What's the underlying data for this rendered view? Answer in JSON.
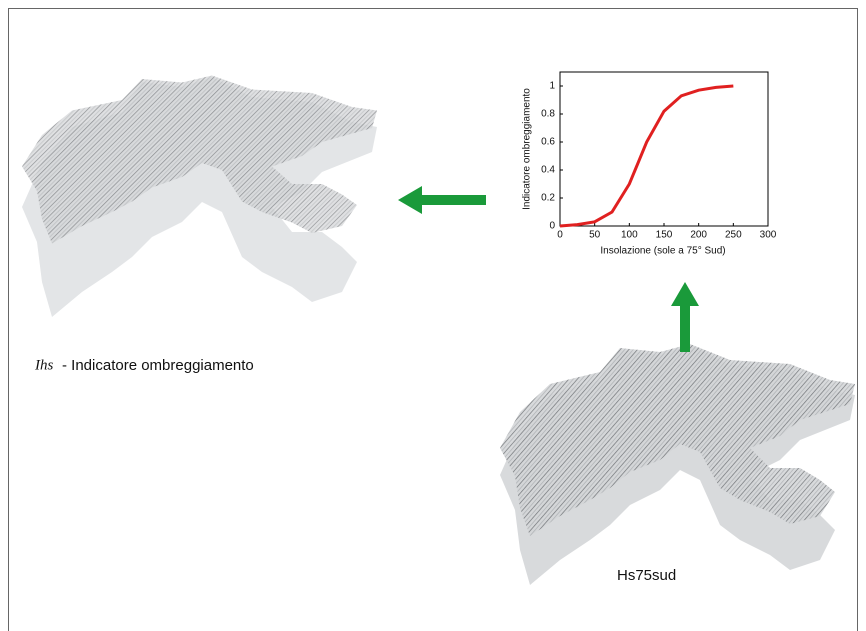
{
  "chart_data": {
    "type": "line",
    "xlabel": "Insolazione (sole a 75° Sud)",
    "ylabel": "Indicatore ombreggiamento",
    "x": [
      0,
      25,
      50,
      75,
      100,
      125,
      150,
      175,
      200,
      225,
      250
    ],
    "series": [
      {
        "color": "#e02020",
        "values": [
          0,
          0.01,
          0.03,
          0.1,
          0.3,
          0.6,
          0.82,
          0.93,
          0.97,
          0.99,
          1.0
        ]
      }
    ],
    "xlim": [
      0,
      300
    ],
    "xticks": [
      0,
      50,
      100,
      150,
      200,
      250,
      300
    ],
    "ylim": [
      0,
      1.1
    ],
    "yticks": [
      0,
      0.2,
      0.4,
      0.6,
      0.8,
      1
    ]
  },
  "labels": {
    "ihs_symbol": "Ihs",
    "ihs_text": "- Indicatore ombreggiamento",
    "hs": "Hs75sud"
  }
}
